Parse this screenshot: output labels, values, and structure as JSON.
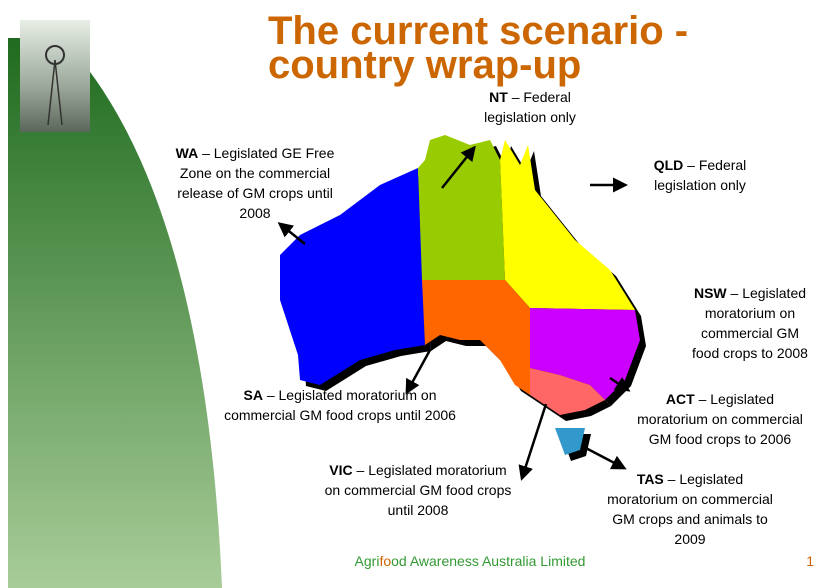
{
  "title": {
    "lines": [
      "The current scenario -",
      "country wrap-up"
    ]
  },
  "states": [
    {
      "abbr": "NT",
      "lines": [
        " – Federal",
        "legislation only"
      ]
    },
    {
      "abbr": "WA",
      "lines": [
        " – Legislated GE Free",
        "Zone on the commercial",
        "release of GM crops until",
        "2008"
      ]
    },
    {
      "abbr": "QLD",
      "lines": [
        " – Federal",
        "legislation only"
      ]
    },
    {
      "abbr": "NSW",
      "lines": [
        " – Legislated",
        "moratorium on",
        "commercial GM",
        "food crops to 2008"
      ]
    },
    {
      "abbr": "SA",
      "lines": [
        " – Legislated moratorium on",
        "commercial GM food crops until 2006"
      ]
    },
    {
      "abbr": "ACT",
      "lines": [
        " – Legislated",
        "moratorium on commercial",
        "GM food crops to 2006"
      ]
    },
    {
      "abbr": "VIC",
      "lines": [
        " – Legislated moratorium",
        "on commercial GM food crops",
        "until 2008"
      ]
    },
    {
      "abbr": "TAS",
      "lines": [
        " – Legislated",
        "moratorium on commercial",
        "GM crops and animals to",
        "2009"
      ]
    }
  ],
  "footer": {
    "parts": [
      "Agri",
      "fo",
      "od Awareness Australia Limited"
    ],
    "page_number": "1"
  }
}
